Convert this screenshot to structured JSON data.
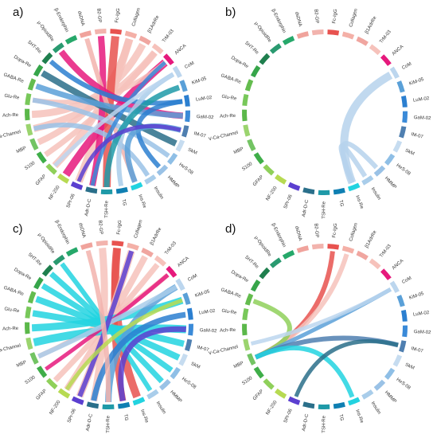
{
  "nodes": [
    {
      "label": "Fc-IgG",
      "color": "#e8524f"
    },
    {
      "label": "Collagen",
      "color": "#f4b0a7"
    },
    {
      "label": "β1AdrRe",
      "color": "#f0a6a0"
    },
    {
      "label": "TrM-03",
      "color": "#f6c2bb"
    },
    {
      "label": "ANCA",
      "color": "#e6197c"
    },
    {
      "label": "CoM",
      "color": "#bcd6ee"
    },
    {
      "label": "KiM-05",
      "color": "#5aa0d8"
    },
    {
      "label": "LuM-02",
      "color": "#2b7fd0"
    },
    {
      "label": "GaM-02",
      "color": "#3a8ad8"
    },
    {
      "label": "IM-07",
      "color": "#4f7fb0"
    },
    {
      "label": "SkM",
      "color": "#c6dcf0"
    },
    {
      "label": "HeS-08",
      "color": "#8fbfe6"
    },
    {
      "label": "HMMP",
      "color": "#9ac2e6"
    },
    {
      "label": "Insulin",
      "color": "#a9cdea"
    },
    {
      "label": "Ins-Re",
      "color": "#22d3e0"
    },
    {
      "label": "TG",
      "color": "#0f7fb2"
    },
    {
      "label": "TSH-Re",
      "color": "#1f9aa8"
    },
    {
      "label": "Adr-D-C",
      "color": "#2a6f8a"
    },
    {
      "label": "SPr-06",
      "color": "#5b3fd0"
    },
    {
      "label": "NF-200",
      "color": "#b7da52"
    },
    {
      "label": "GFAP",
      "color": "#8fd05a"
    },
    {
      "label": "S100",
      "color": "#3fae49"
    },
    {
      "label": "MBP",
      "color": "#73c463"
    },
    {
      "label": "V-Ca-Channel",
      "color": "#9bd46e"
    },
    {
      "label": "Ach-Re",
      "color": "#5bb84a"
    },
    {
      "label": "Glu-Re",
      "color": "#78c85a"
    },
    {
      "label": "GABA-Re",
      "color": "#64bc4e"
    },
    {
      "label": "Dopa-Re",
      "color": "#36a54a"
    },
    {
      "label": "5HT-Re",
      "color": "#1f7f4e"
    },
    {
      "label": "μ-OpioidRe",
      "color": "#2a9a70"
    },
    {
      "label": "β-Endorphin",
      "color": "#26a86a"
    },
    {
      "label": "dsDNA",
      "color": "#f0a39c"
    },
    {
      "label": "B2-GP",
      "color": "#f2b3ad"
    }
  ],
  "panels": [
    {
      "label": "a)",
      "links": [
        {
          "from": "Collagen",
          "to": "SPr-06",
          "color": "#f6c2bb",
          "width": 10
        },
        {
          "from": "Collagen",
          "to": "GFAP",
          "color": "#f6c2bb",
          "width": 9
        },
        {
          "from": "Collagen",
          "to": "MBP",
          "color": "#f6c2bb",
          "width": 8
        },
        {
          "from": "β1AdrRe",
          "to": "Ach-Re",
          "color": "#f6c2bb",
          "width": 9
        },
        {
          "from": "TrM-03",
          "to": "V-Ca-Channel",
          "color": "#f6c2bb",
          "width": 9
        },
        {
          "from": "TrM-03",
          "to": "S100",
          "color": "#f6c2bb",
          "width": 7
        },
        {
          "from": "ANCA",
          "to": "NF-200",
          "color": "#e6197c",
          "width": 10
        },
        {
          "from": "ANCA",
          "to": "Glu-Re",
          "color": "#f6c2bb",
          "width": 6
        },
        {
          "from": "Fc-IgG",
          "to": "TSH-Re",
          "color": "#e8524f",
          "width": 10
        },
        {
          "from": "B2-GP",
          "to": "Adr-D-C",
          "color": "#e6197c",
          "width": 8
        },
        {
          "from": "dsDNA",
          "to": "Ins-Re",
          "color": "#f2b3ad",
          "width": 6
        },
        {
          "from": "μ-OpioidRe",
          "to": "GaM-02",
          "color": "#e6197c",
          "width": 8
        },
        {
          "from": "Dopa-Re",
          "to": "SkM",
          "color": "#2a6f8a",
          "width": 8
        },
        {
          "from": "GABA-Re",
          "to": "GaM-02",
          "color": "#5aa0d8",
          "width": 7
        },
        {
          "from": "Glu-Re",
          "to": "HeS-08",
          "color": "#9ac2e6",
          "width": 6
        },
        {
          "from": "V-Ca-Channel",
          "to": "Insulin",
          "color": "#9ac2e6",
          "width": 6
        },
        {
          "from": "5HT-Re",
          "to": "LuM-02",
          "color": "#2b7fd0",
          "width": 6
        },
        {
          "from": "CoM",
          "to": "TG",
          "color": "#a9cdea",
          "width": 6
        },
        {
          "from": "KiM-05",
          "to": "TSH-Re",
          "color": "#1f9aa8",
          "width": 7
        },
        {
          "from": "LuM-02",
          "to": "HMMP",
          "color": "#2b7fd0",
          "width": 6
        },
        {
          "from": "IM-07",
          "to": "Ins-Re",
          "color": "#5aa0d8",
          "width": 7
        },
        {
          "from": "Adr-D-C",
          "to": "ANCA",
          "color": "#3a8ad8",
          "width": 5
        },
        {
          "from": "SPr-06",
          "to": "IM-07",
          "color": "#5b3fd0",
          "width": 5
        },
        {
          "from": "GFAP",
          "to": "CoM",
          "color": "#bcd6ee",
          "width": 5
        }
      ]
    },
    {
      "label": "b)",
      "links": [
        {
          "from": "CoM",
          "to": "Ins-Re",
          "color": "#b6d2ec",
          "width": 10
        },
        {
          "from": "Insulin",
          "to": "Ins-Re",
          "color": "#b6d2ec",
          "width": 6
        },
        {
          "from": "HMMP",
          "to": "Ins-Re",
          "color": "#b6d2ec",
          "width": 6
        }
      ]
    },
    {
      "label": "c)",
      "links": [
        {
          "from": "Fc-IgG",
          "to": "Ins-Re",
          "color": "#e8524f",
          "width": 10
        },
        {
          "from": "Fc-IgG",
          "to": "TG",
          "color": "#e8524f",
          "width": 8
        },
        {
          "from": "B2-GP",
          "to": "Adr-D-C",
          "color": "#f6c2bb",
          "width": 9
        },
        {
          "from": "Collagen",
          "to": "SPr-06",
          "color": "#f6c2bb",
          "width": 9
        },
        {
          "from": "β1AdrRe",
          "to": "NF-200",
          "color": "#f6c2bb",
          "width": 8
        },
        {
          "from": "TrM-03",
          "to": "GFAP",
          "color": "#f6c2bb",
          "width": 7
        },
        {
          "from": "ANCA",
          "to": "MBP",
          "color": "#f6c2bb",
          "width": 6
        },
        {
          "from": "V-Ca-Channel",
          "to": "GaM-02",
          "color": "#22d3e0",
          "width": 10
        },
        {
          "from": "Ach-Re",
          "to": "KiM-05",
          "color": "#22d3e0",
          "width": 9
        },
        {
          "from": "Glu-Re",
          "to": "IM-07",
          "color": "#22d3e0",
          "width": 8
        },
        {
          "from": "GABA-Re",
          "to": "SkM",
          "color": "#22d3e0",
          "width": 8
        },
        {
          "from": "Dopa-Re",
          "to": "HeS-08",
          "color": "#22d3e0",
          "width": 7
        },
        {
          "from": "5HT-Re",
          "to": "HMMP",
          "color": "#22d3e0",
          "width": 7
        },
        {
          "from": "μ-OpioidRe",
          "to": "Insulin",
          "color": "#22d3e0",
          "width": 6
        },
        {
          "from": "CoM",
          "to": "TSH-Re",
          "color": "#5aa0d8",
          "width": 8
        },
        {
          "from": "LuM-02",
          "to": "Adr-D-C",
          "color": "#2b7fd0",
          "width": 7
        },
        {
          "from": "GaM-02",
          "to": "TG",
          "color": "#5b3fd0",
          "width": 7
        },
        {
          "from": "S100",
          "to": "ANCA",
          "color": "#e6197c",
          "width": 5
        },
        {
          "from": "MBP",
          "to": "CoM",
          "color": "#a9cdea",
          "width": 6
        },
        {
          "from": "SPr-06",
          "to": "Collagen",
          "color": "#5b3fd0",
          "width": 6
        },
        {
          "from": "dsDNA",
          "to": "TSH-Re",
          "color": "#f2b3ad",
          "width": 6
        },
        {
          "from": "NF-200",
          "to": "KiM-05",
          "color": "#b7da52",
          "width": 5
        }
      ]
    },
    {
      "label": "d)",
      "links": [
        {
          "from": "Fc-IgG",
          "to": "MBP",
          "color": "#e8524f",
          "width": 6
        },
        {
          "from": "Collagen",
          "to": "MBP",
          "color": "#f6c2bb",
          "width": 6
        },
        {
          "from": "GABA-Re",
          "to": "MBP",
          "color": "#8fd05a",
          "width": 6
        },
        {
          "from": "CoM",
          "to": "MBP",
          "color": "#5aa0d8",
          "width": 5
        },
        {
          "from": "IM-07",
          "to": "MBP",
          "color": "#4f7fb0",
          "width": 6
        },
        {
          "from": "Ins-Re",
          "to": "MBP",
          "color": "#22d3e0",
          "width": 6
        },
        {
          "from": "SPr-06",
          "to": "IM-07",
          "color": "#2a6f8a",
          "width": 5
        },
        {
          "from": "V-Ca-Channel",
          "to": "CoM",
          "color": "#bcd6ee",
          "width": 5
        }
      ]
    }
  ]
}
